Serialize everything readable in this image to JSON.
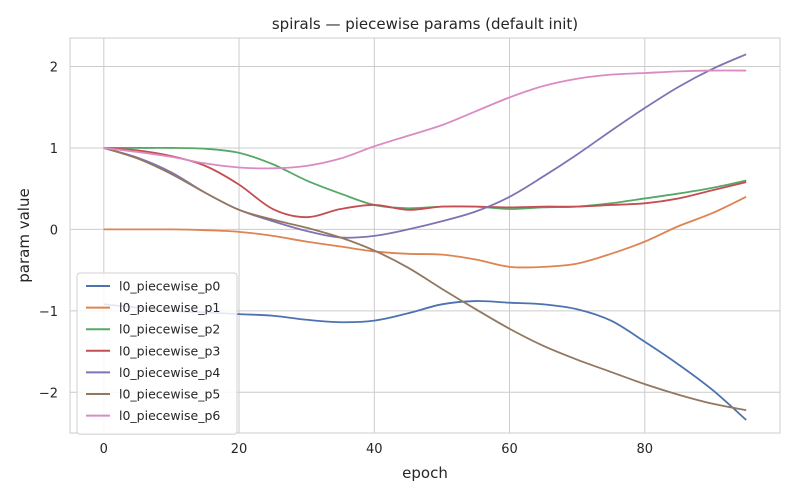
{
  "chart_data": {
    "type": "line",
    "title": "spirals — piecewise params (default init)",
    "xlabel": "epoch",
    "ylabel": "param value",
    "xlim": [
      -5,
      100
    ],
    "ylim": [
      -2.5,
      2.35
    ],
    "xticks": [
      0,
      20,
      40,
      60,
      80
    ],
    "yticks": [
      -2,
      -1,
      0,
      1,
      2
    ],
    "ytick_labels": [
      "−2",
      "−1",
      "0",
      "1",
      "2"
    ],
    "grid": true,
    "legend_position": "lower-left",
    "series": [
      {
        "name": "l0_piecewise_p0",
        "color": "#4c72b0",
        "x": [
          0,
          5,
          10,
          15,
          20,
          25,
          30,
          35,
          40,
          45,
          50,
          55,
          60,
          65,
          70,
          75,
          80,
          85,
          90,
          95
        ],
        "y": [
          -0.92,
          -0.96,
          -1.0,
          -1.02,
          -1.04,
          -1.06,
          -1.11,
          -1.14,
          -1.12,
          -1.03,
          -0.92,
          -0.88,
          -0.9,
          -0.92,
          -0.98,
          -1.12,
          -1.38,
          -1.66,
          -1.97,
          -2.34
        ]
      },
      {
        "name": "l0_piecewise_p1",
        "color": "#dd8452",
        "x": [
          0,
          5,
          10,
          15,
          20,
          25,
          30,
          35,
          40,
          45,
          50,
          55,
          60,
          65,
          70,
          75,
          80,
          85,
          90,
          95
        ],
        "y": [
          0.0,
          0.0,
          0.0,
          -0.01,
          -0.03,
          -0.08,
          -0.15,
          -0.21,
          -0.27,
          -0.3,
          -0.31,
          -0.37,
          -0.46,
          -0.46,
          -0.42,
          -0.3,
          -0.15,
          0.04,
          0.2,
          0.4
        ]
      },
      {
        "name": "l0_piecewise_p2",
        "color": "#55a868",
        "x": [
          0,
          5,
          10,
          15,
          20,
          25,
          30,
          35,
          40,
          45,
          50,
          55,
          60,
          65,
          70,
          75,
          80,
          85,
          90,
          95
        ],
        "y": [
          1.0,
          1.0,
          1.0,
          0.99,
          0.94,
          0.8,
          0.6,
          0.44,
          0.3,
          0.26,
          0.28,
          0.28,
          0.25,
          0.27,
          0.28,
          0.32,
          0.38,
          0.44,
          0.51,
          0.6
        ]
      },
      {
        "name": "l0_piecewise_p3",
        "color": "#c44e52",
        "x": [
          0,
          5,
          10,
          15,
          20,
          25,
          30,
          35,
          40,
          45,
          50,
          55,
          60,
          65,
          70,
          75,
          80,
          85,
          90,
          95
        ],
        "y": [
          1.0,
          0.97,
          0.9,
          0.78,
          0.55,
          0.25,
          0.15,
          0.25,
          0.3,
          0.24,
          0.28,
          0.28,
          0.27,
          0.28,
          0.28,
          0.3,
          0.32,
          0.38,
          0.48,
          0.58
        ]
      },
      {
        "name": "l0_piecewise_p4",
        "color": "#8172b3",
        "x": [
          0,
          5,
          10,
          15,
          20,
          25,
          30,
          35,
          40,
          45,
          50,
          55,
          60,
          65,
          70,
          75,
          80,
          85,
          90,
          95
        ],
        "y": [
          1.0,
          0.88,
          0.7,
          0.45,
          0.24,
          0.1,
          -0.02,
          -0.1,
          -0.08,
          0.0,
          0.1,
          0.22,
          0.4,
          0.65,
          0.92,
          1.21,
          1.49,
          1.75,
          1.97,
          2.15
        ]
      },
      {
        "name": "l0_piecewise_p5",
        "color": "#937860",
        "x": [
          0,
          5,
          10,
          15,
          20,
          25,
          30,
          35,
          40,
          45,
          50,
          55,
          60,
          65,
          70,
          75,
          80,
          85,
          90,
          95
        ],
        "y": [
          1.0,
          0.87,
          0.68,
          0.45,
          0.24,
          0.12,
          0.02,
          -0.1,
          -0.26,
          -0.47,
          -0.73,
          -0.98,
          -1.22,
          -1.43,
          -1.6,
          -1.75,
          -1.9,
          -2.03,
          -2.14,
          -2.22
        ]
      },
      {
        "name": "l0_piecewise_p6",
        "color": "#da8bc3",
        "x": [
          0,
          5,
          10,
          15,
          20,
          25,
          30,
          35,
          40,
          45,
          50,
          55,
          60,
          65,
          70,
          75,
          80,
          85,
          90,
          95
        ],
        "y": [
          1.0,
          0.95,
          0.89,
          0.81,
          0.76,
          0.75,
          0.78,
          0.87,
          1.02,
          1.15,
          1.28,
          1.45,
          1.62,
          1.76,
          1.85,
          1.9,
          1.92,
          1.94,
          1.95,
          1.95
        ]
      }
    ]
  }
}
